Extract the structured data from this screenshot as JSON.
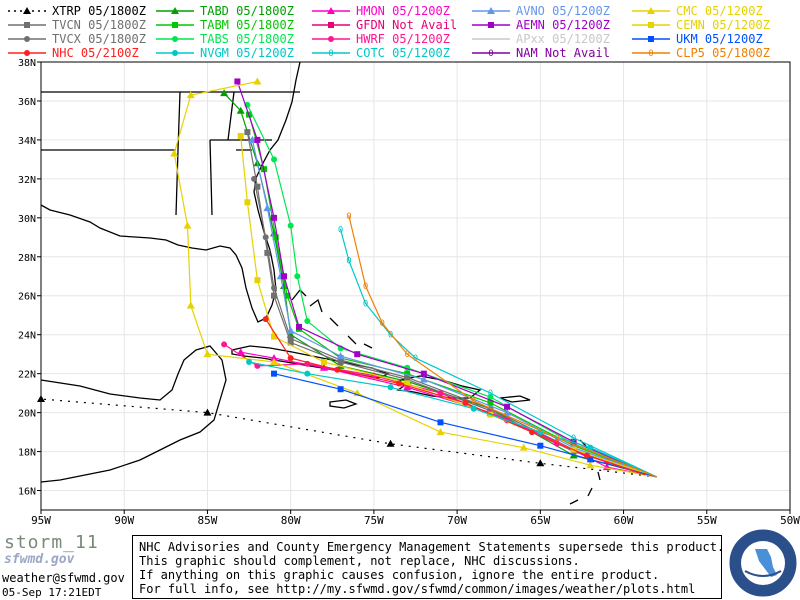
{
  "legend": [
    {
      "label": "XTRP 05/1800Z",
      "color": "#000000",
      "marker": "triangle",
      "dash": "dot"
    },
    {
      "label": "TABD 05/1800Z",
      "color": "#00a000",
      "marker": "triangle"
    },
    {
      "label": "HMON 05/1200Z",
      "color": "#ff00c8",
      "marker": "triangle"
    },
    {
      "label": "AVNO 05/1200Z",
      "color": "#6495ed",
      "marker": "triangle"
    },
    {
      "label": "CMC  05/1200Z",
      "color": "#e6d200",
      "marker": "triangle"
    },
    {
      "label": "TVCN 05/1800Z",
      "color": "#707070",
      "marker": "square"
    },
    {
      "label": "TABM 05/1800Z",
      "color": "#00c800",
      "marker": "square"
    },
    {
      "label": "GFDN Not Avail",
      "color": "#e6007a",
      "marker": "square"
    },
    {
      "label": "AEMN 05/1200Z",
      "color": "#a000c8",
      "marker": "square"
    },
    {
      "label": "CEMN 05/1200Z",
      "color": "#e6d200",
      "marker": "square"
    },
    {
      "label": "TVCX 05/1800Z",
      "color": "#707070",
      "marker": "circle"
    },
    {
      "label": "TABS 05/1800Z",
      "color": "#00e650",
      "marker": "circle"
    },
    {
      "label": "HWRF 05/1200Z",
      "color": "#ff1493",
      "marker": "circle"
    },
    {
      "label": "APxx 05/1200Z",
      "color": "#c8c8c8",
      "marker": "none"
    },
    {
      "label": "UKM  05/1200Z",
      "color": "#0050ff",
      "marker": "square"
    },
    {
      "label": "NHC 05/2100Z",
      "color": "#ff2020",
      "marker": "circle"
    },
    {
      "label": "NVGM 05/1200Z",
      "color": "#00c8c8",
      "marker": "circle"
    },
    {
      "label": "COTC 05/1200Z",
      "color": "#00c8c8",
      "marker": "letter"
    },
    {
      "label": "NAM  Not Avail",
      "color": "#8000a0",
      "marker": "letter"
    },
    {
      "label": "CLP5 05/1800Z",
      "color": "#f08000",
      "marker": "letter"
    }
  ],
  "chart_data": {
    "type": "line",
    "x_label_ticks": [
      "95W",
      "90W",
      "85W",
      "80W",
      "75W",
      "70W",
      "65W",
      "60W",
      "55W",
      "50W"
    ],
    "y_label_ticks": [
      "16N",
      "18N",
      "20N",
      "22N",
      "24N",
      "26N",
      "28N",
      "30N",
      "32N",
      "34N",
      "36N",
      "38N"
    ],
    "xlim": [
      -95,
      -50
    ],
    "ylim": [
      15,
      38
    ],
    "grid": true,
    "series": [
      {
        "name": "XTRP 05/1800Z",
        "color": "#000000",
        "marker": "triangle",
        "dash": "dot",
        "points": [
          [
            -58,
            16.7
          ],
          [
            -65,
            17.4
          ],
          [
            -74,
            18.4
          ],
          [
            -85,
            20.0
          ],
          [
            -95,
            20.7
          ]
        ]
      },
      {
        "name": "TABD 05/1800Z",
        "color": "#00a000",
        "marker": "triangle",
        "points": [
          [
            -58,
            16.7
          ],
          [
            -63,
            17.8
          ],
          [
            -68,
            20.2
          ],
          [
            -73,
            21.6
          ],
          [
            -77,
            22.4
          ],
          [
            -80,
            24.0
          ],
          [
            -80.4,
            26.5
          ],
          [
            -81,
            29.2
          ],
          [
            -82,
            32.8
          ],
          [
            -83,
            35.5
          ],
          [
            -84,
            36.4
          ]
        ]
      },
      {
        "name": "TVCN 05/1800Z",
        "color": "#707070",
        "marker": "square",
        "points": [
          [
            -58,
            16.7
          ],
          [
            -63,
            18.0
          ],
          [
            -68,
            20.1
          ],
          [
            -73,
            21.7
          ],
          [
            -77,
            22.6
          ],
          [
            -80,
            23.6
          ],
          [
            -81,
            26.0
          ],
          [
            -81.4,
            28.2
          ],
          [
            -82,
            31.6
          ],
          [
            -82.6,
            34.4
          ]
        ]
      },
      {
        "name": "TABM 05/1800Z",
        "color": "#00c800",
        "marker": "square",
        "points": [
          [
            -58,
            16.7
          ],
          [
            -63,
            18.3
          ],
          [
            -68,
            20.5
          ],
          [
            -73,
            22.0
          ],
          [
            -77,
            22.8
          ],
          [
            -79.5,
            24.3
          ],
          [
            -80.2,
            26.0
          ],
          [
            -80.9,
            29.0
          ],
          [
            -81.6,
            32.5
          ],
          [
            -82.5,
            35.3
          ]
        ]
      },
      {
        "name": "TVCX 05/1800Z",
        "color": "#707070",
        "marker": "circle",
        "points": [
          [
            -58,
            16.7
          ],
          [
            -63,
            18.1
          ],
          [
            -68,
            20.2
          ],
          [
            -73,
            21.8
          ],
          [
            -77,
            22.7
          ],
          [
            -80,
            23.8
          ],
          [
            -81,
            26.4
          ],
          [
            -81.5,
            29.0
          ],
          [
            -82.2,
            32.0
          ]
        ]
      },
      {
        "name": "TABS 05/1800Z",
        "color": "#00e650",
        "marker": "circle",
        "points": [
          [
            -58,
            16.7
          ],
          [
            -63,
            18.4
          ],
          [
            -68,
            20.8
          ],
          [
            -73,
            22.3
          ],
          [
            -77,
            23.3
          ],
          [
            -79,
            24.7
          ],
          [
            -79.6,
            27.0
          ],
          [
            -80.0,
            29.6
          ],
          [
            -81,
            33.0
          ],
          [
            -82.6,
            35.8
          ]
        ]
      },
      {
        "name": "HMON 05/1200Z",
        "color": "#ff00c8",
        "marker": "triangle",
        "points": [
          [
            -58,
            16.7
          ],
          [
            -61,
            17.2
          ],
          [
            -64,
            18.5
          ],
          [
            -68,
            20.0
          ],
          [
            -73,
            21.3
          ],
          [
            -78,
            22.3
          ],
          [
            -81,
            22.8
          ],
          [
            -83,
            23.1
          ]
        ]
      },
      {
        "name": "GFDN Not Avail",
        "color": "#e6007a",
        "marker": "square",
        "points": []
      },
      {
        "name": "HWRF 05/1200Z",
        "color": "#ff1493",
        "marker": "circle",
        "points": [
          [
            -58,
            16.7
          ],
          [
            -61,
            17.5
          ],
          [
            -64,
            18.4
          ],
          [
            -67,
            19.6
          ],
          [
            -71,
            21.0
          ],
          [
            -75,
            21.9
          ],
          [
            -79,
            22.5
          ],
          [
            -82,
            22.4
          ],
          [
            -84,
            23.5
          ]
        ]
      },
      {
        "name": "AVNO 05/1200Z",
        "color": "#6495ed",
        "marker": "triangle",
        "points": [
          [
            -58,
            16.7
          ],
          [
            -63,
            18.2
          ],
          [
            -67,
            20.0
          ],
          [
            -72,
            21.7
          ],
          [
            -77,
            22.9
          ],
          [
            -80,
            24.2
          ],
          [
            -80.6,
            27.0
          ],
          [
            -81.4,
            30.5
          ],
          [
            -82.3,
            34.0
          ]
        ]
      },
      {
        "name": "AEMN 05/1200Z",
        "color": "#a000c8",
        "marker": "square",
        "points": [
          [
            -58,
            16.7
          ],
          [
            -63,
            18.5
          ],
          [
            -67,
            20.3
          ],
          [
            -72,
            22.0
          ],
          [
            -76,
            23.0
          ],
          [
            -79.5,
            24.4
          ],
          [
            -80.4,
            27.0
          ],
          [
            -81,
            30.0
          ],
          [
            -82,
            34.0
          ],
          [
            -83.2,
            37.0
          ]
        ]
      },
      {
        "name": "CMC  05/1200Z",
        "color": "#e6d200",
        "marker": "triangle",
        "points": [
          [
            -58,
            16.7
          ],
          [
            -62,
            17.3
          ],
          [
            -66,
            18.2
          ],
          [
            -71,
            19.0
          ],
          [
            -76,
            21.0
          ],
          [
            -81,
            22.6
          ],
          [
            -85,
            23.0
          ],
          [
            -86,
            25.5
          ],
          [
            -86.2,
            29.6
          ],
          [
            -87,
            33.3
          ],
          [
            -86,
            36.3
          ],
          [
            -82,
            37.0
          ]
        ]
      },
      {
        "name": "CEMN 05/1200Z",
        "color": "#e6d200",
        "marker": "square",
        "points": [
          [
            -58,
            16.7
          ],
          [
            -63,
            18.1
          ],
          [
            -68,
            19.9
          ],
          [
            -73,
            21.5
          ],
          [
            -78,
            22.6
          ],
          [
            -81,
            23.9
          ],
          [
            -82,
            26.8
          ],
          [
            -82.6,
            30.8
          ],
          [
            -83,
            34.2
          ]
        ]
      },
      {
        "name": "UKM  05/1200Z",
        "color": "#0050ff",
        "marker": "square",
        "points": [
          [
            -58,
            16.7
          ],
          [
            -62,
            17.6
          ],
          [
            -65,
            18.3
          ],
          [
            -71,
            19.5
          ],
          [
            -77,
            21.2
          ],
          [
            -81,
            22.0
          ]
        ]
      },
      {
        "name": "NHC 05/2100Z",
        "color": "#ff2020",
        "marker": "circle",
        "points": [
          [
            -58.7,
            16.8
          ],
          [
            -62.2,
            17.8
          ],
          [
            -65.5,
            19.0
          ],
          [
            -69.5,
            20.5
          ],
          [
            -73.5,
            21.5
          ],
          [
            -77.2,
            22.2
          ],
          [
            -80,
            22.8
          ],
          [
            -81.5,
            24.8
          ]
        ]
      },
      {
        "name": "NVGM 05/1200Z",
        "color": "#00c8c8",
        "marker": "circle",
        "points": [
          [
            -58,
            16.7
          ],
          [
            -62,
            18.2
          ],
          [
            -65,
            19.0
          ],
          [
            -69,
            20.2
          ],
          [
            -74,
            21.3
          ],
          [
            -79,
            22.0
          ],
          [
            -82.5,
            22.6
          ]
        ]
      },
      {
        "name": "COTC 05/1200Z",
        "color": "#00c8c8",
        "marker": "letter",
        "points": [
          [
            -58,
            16.7
          ],
          [
            -63,
            18.7
          ],
          [
            -68,
            21.0
          ],
          [
            -72.5,
            22.8
          ],
          [
            -74,
            24.0
          ],
          [
            -75.5,
            25.6
          ],
          [
            -76.5,
            27.8
          ],
          [
            -77,
            29.4
          ]
        ]
      },
      {
        "name": "CLP5 05/1800Z",
        "color": "#f08000",
        "marker": "letter",
        "points": [
          [
            -58,
            16.7
          ],
          [
            -64,
            18.7
          ],
          [
            -69,
            20.6
          ],
          [
            -73,
            23.0
          ],
          [
            -74.5,
            24.6
          ],
          [
            -75.5,
            26.5
          ],
          [
            -76.5,
            30.1
          ]
        ]
      },
      {
        "name": "NAM  Not Avail",
        "color": "#8000a0",
        "marker": "letter",
        "points": []
      }
    ]
  },
  "footer": {
    "brand": "storm_11",
    "brand_sub": "sfwmd.gov",
    "email": "weather@sfwmd.gov",
    "timestamp": "05-Sep 17:21EDT",
    "notice": [
      "NHC Advisories and County Emergency Management Statements supersede this product.",
      "This graphic should complement, not replace, NHC discussions.",
      "If anything on this graphic causes confusion, ignore the entire product.",
      "For full info, see  http://my.sfwmd.gov/sfwmd/common/images/weather/plots.html"
    ],
    "seal_text": "SOUTH FLORIDA WATER MANAGEMENT DISTRICT"
  }
}
